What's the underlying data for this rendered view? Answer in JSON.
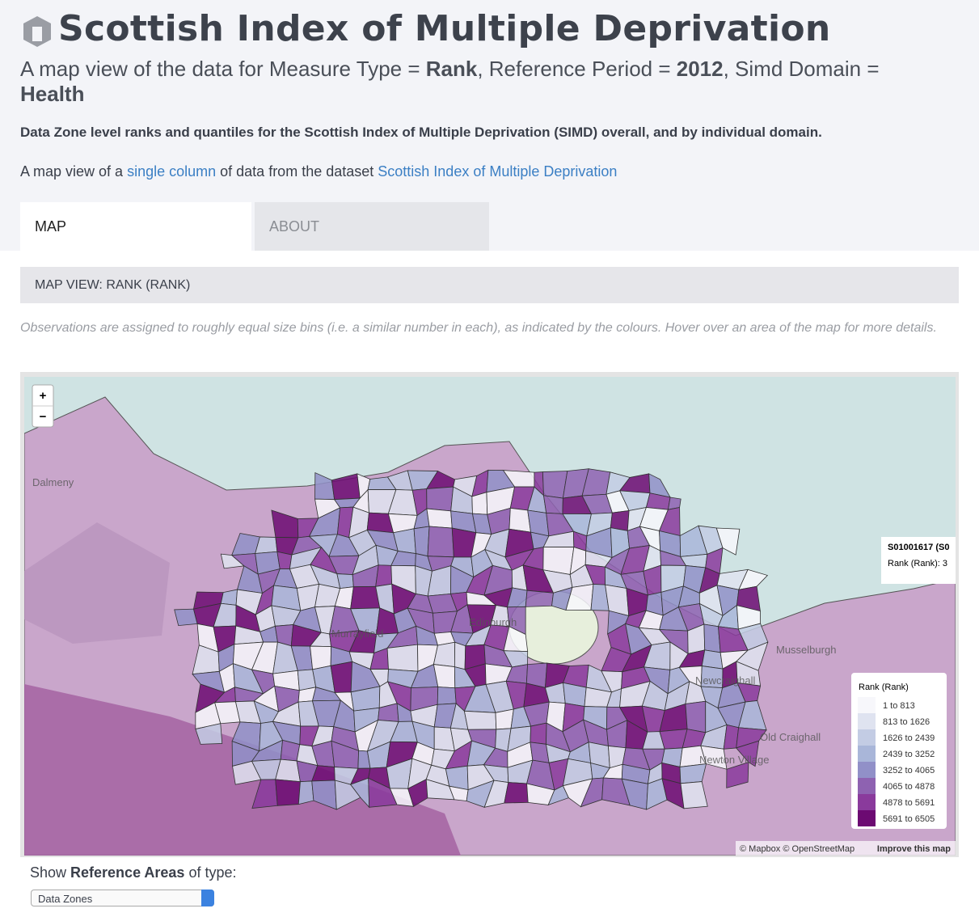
{
  "header": {
    "title": "Scottish Index of Multiple Deprivation",
    "subtitle": {
      "prefix": "A map view of the data for Measure Type = ",
      "measure": "Rank",
      "mid1": ", Reference Period = ",
      "period": "2012",
      "mid2": ", Simd Domain = ",
      "domain": "Health"
    },
    "description": "Data Zone level ranks and quantiles for the Scottish Index of Multiple Deprivation (SIMD) overall, and by individual domain.",
    "source": {
      "prefix": "A map view of a ",
      "link1": "single column",
      "mid": " of data from the dataset ",
      "link2": "Scottish Index of Multiple Deprivation"
    }
  },
  "tabs": [
    "MAP",
    "ABOUT"
  ],
  "panel": {
    "title": "MAP VIEW: RANK (RANK)",
    "note": "Observations are assigned to roughly equal size bins (i.e. a similar number in each), as indicated by the colours. Hover over an area of the map for more details."
  },
  "map": {
    "zoom_in": "+",
    "zoom_out": "−",
    "places": [
      "Dalmeny",
      "Edinburgh",
      "Musselburgh",
      "Newcraighall",
      "Old Craighall",
      "Newton Village",
      "Murrayfield"
    ],
    "tooltip": {
      "title": "S01001617 (S0",
      "value": "Rank (Rank): 3"
    },
    "attribution": {
      "text": "© Mapbox © OpenStreetMap",
      "link": "Improve this map"
    },
    "legend": {
      "title": "Rank (Rank)",
      "items": [
        {
          "label": "1 to 813",
          "color": "#f7f7fb"
        },
        {
          "label": "813 to 1626",
          "color": "#dfe3f0"
        },
        {
          "label": "1626 to 2439",
          "color": "#c3cce4"
        },
        {
          "label": "2439 to 3252",
          "color": "#a9b6d9"
        },
        {
          "label": "3252 to 4065",
          "color": "#9190c8"
        },
        {
          "label": "4065 to 4878",
          "color": "#8e62b1"
        },
        {
          "label": "4878 to 5691",
          "color": "#8a3a9c"
        },
        {
          "label": "5691 to 6505",
          "color": "#6c0a72"
        }
      ]
    }
  },
  "controls": {
    "prefix": "Show ",
    "bold": "Reference Areas",
    "suffix": " of type:",
    "select": "Data Zones"
  }
}
